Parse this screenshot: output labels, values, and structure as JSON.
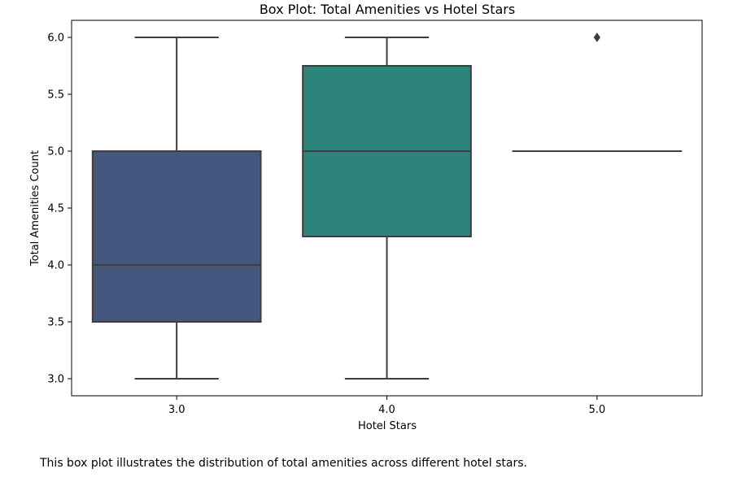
{
  "chart_data": {
    "type": "box",
    "title": "Box Plot: Total Amenities vs Hotel Stars",
    "xlabel": "Hotel Stars",
    "ylabel": "Total Amenities Count",
    "ylim": [
      2.85,
      6.15
    ],
    "yticks": [
      "3.0",
      "3.5",
      "4.0",
      "4.5",
      "5.0",
      "5.5",
      "6.0"
    ],
    "grid": false,
    "categories": [
      "3.0",
      "4.0",
      "5.0"
    ],
    "boxes": [
      {
        "category": "3.0",
        "whisker_low": 3.0,
        "q1": 3.5,
        "median": 4.0,
        "q3": 5.0,
        "whisker_high": 6.0,
        "outliers": [],
        "color": "#46577f"
      },
      {
        "category": "4.0",
        "whisker_low": 3.0,
        "q1": 4.25,
        "median": 5.0,
        "q3": 5.75,
        "whisker_high": 6.0,
        "outliers": [],
        "color": "#2d847c"
      },
      {
        "category": "5.0",
        "whisker_low": 5.0,
        "q1": 5.0,
        "median": 5.0,
        "q3": 5.0,
        "whisker_high": 5.0,
        "outliers": [
          6.0
        ],
        "color": "#5cb96a"
      }
    ]
  },
  "caption": "This box plot illustrates the distribution of total amenities across different hotel stars."
}
